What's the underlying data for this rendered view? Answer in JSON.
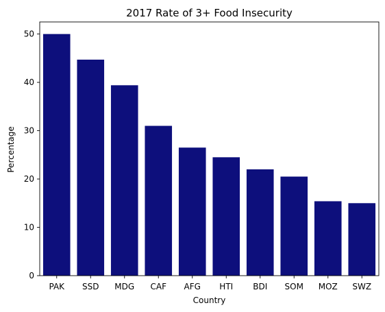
{
  "colors": {
    "bar": "#0d0f7c",
    "axis": "#000000",
    "background": "#ffffff"
  },
  "chart_data": {
    "type": "bar",
    "title": "2017 Rate of 3+ Food Insecurity",
    "xlabel": "Country",
    "ylabel": "Percentage",
    "categories": [
      "PAK",
      "SSD",
      "MDG",
      "CAF",
      "AFG",
      "HTI",
      "BDI",
      "SOM",
      "MOZ",
      "SWZ"
    ],
    "values": [
      50.0,
      44.7,
      39.4,
      31.0,
      26.5,
      24.5,
      22.0,
      20.5,
      15.4,
      15.0
    ],
    "yticks": [
      0,
      10,
      20,
      30,
      40,
      50
    ],
    "ylim": [
      0,
      52.5
    ],
    "grid": false,
    "legend": "none"
  }
}
